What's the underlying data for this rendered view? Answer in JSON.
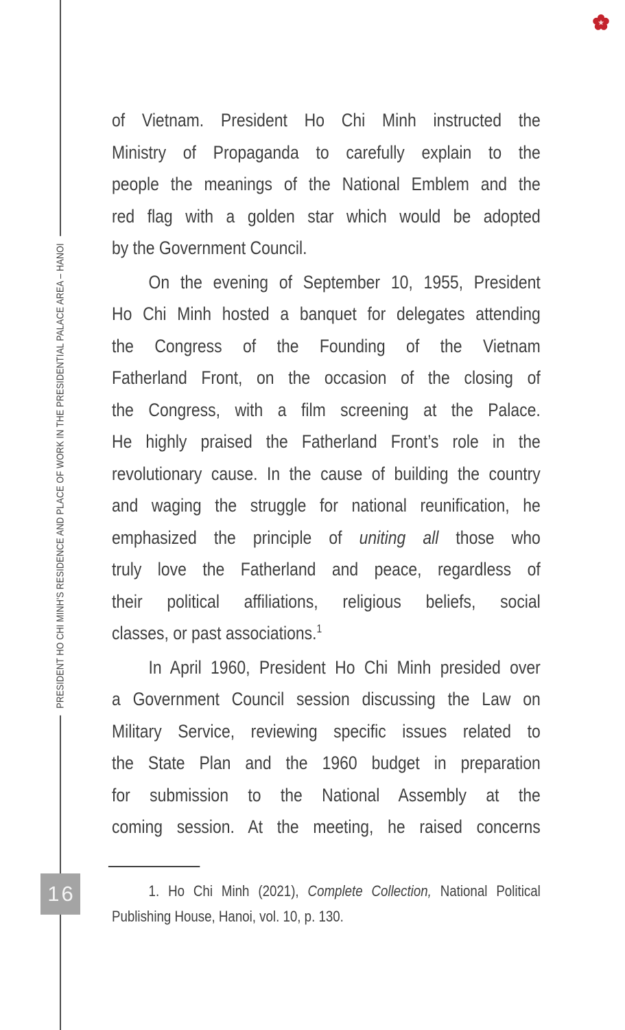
{
  "page": {
    "number": "16",
    "sidebar_title": "PRESIDENT HO CHI MINH'S RESIDENCE AND PLACE OF WORK IN THE PRESIDENTIAL PALACE AREA – HANOI"
  },
  "icons": {
    "corner_flower": "red-blossom-icon"
  },
  "colors": {
    "accent_red": "#c4232c",
    "blossom_center": "#f6dada",
    "text": "#3d3d3d",
    "rule": "#4a4a4a",
    "page_number_bg": "#a4a4a4",
    "page_number_text": "#f5f5f5"
  },
  "body": {
    "paragraphs": [
      {
        "indent": false,
        "justify_last": false,
        "lines": [
          "of Vietnam. President Ho Chi Minh instructed the",
          "Ministry of Propaganda to carefully explain to the",
          "people the meanings of the National Emblem and the",
          "red flag with a golden star which would be adopted",
          "by the Government Council."
        ]
      },
      {
        "indent": true,
        "justify_last": false,
        "lines": [
          "On the evening of September 10, 1955, President",
          "Ho Chi Minh hosted a banquet for delegates attending",
          "the Congress of the Founding of the Vietnam",
          "Fatherland Front, on the occasion of the closing of",
          "the Congress, with a film screening at the Palace.",
          "He highly praised the Fatherland Front’s role in the",
          "revolutionary cause. In the cause of building the country",
          "and waging the struggle for national reunification, he",
          [
            {
              "text": "emphasized the principle of "
            },
            {
              "text": "uniting all",
              "italic": true
            },
            {
              "text": " those who"
            }
          ],
          "truly love the Fatherland and peace, regardless of",
          "their political affiliations, religious beliefs, social",
          [
            {
              "text": "classes, or past associations."
            },
            {
              "text": "1",
              "sup": true
            }
          ]
        ]
      },
      {
        "indent": true,
        "justify_last": true,
        "lines": [
          "In April 1960, President Ho Chi Minh presided over",
          "a Government Council session discussing the Law on",
          "Military Service, reviewing specific issues related to",
          "the State Plan and the 1960 budget in preparation",
          "for submission to the National Assembly at the",
          "coming session. At the meeting, he raised concerns"
        ]
      }
    ]
  },
  "footnote": {
    "lines": [
      [
        {
          "text": "1. Ho Chi Minh (2021), "
        },
        {
          "text": "Complete Collection,",
          "italic": true
        },
        {
          "text": " National Political"
        }
      ],
      "Publishing House, Hanoi, vol. 10, p. 130."
    ]
  }
}
